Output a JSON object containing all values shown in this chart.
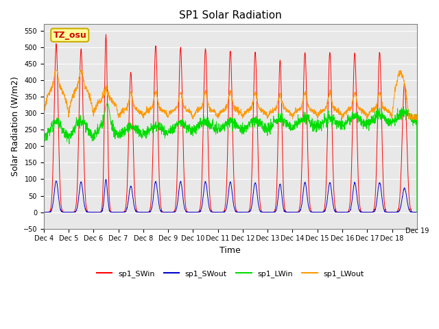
{
  "title": "SP1 Solar Radiation",
  "xlabel": "Time",
  "ylabel": "Solar Radiation (W/m2)",
  "ylim": [
    -50,
    570
  ],
  "yticks": [
    -50,
    0,
    50,
    100,
    150,
    200,
    250,
    300,
    350,
    400,
    450,
    500,
    550
  ],
  "xticklabels": [
    "Dec 4",
    "Dec 5",
    "Dec 6",
    "Dec 7",
    "Dec 8",
    "Dec 9",
    "Dec 10",
    "Dec 11",
    "Dec 12",
    "Dec 13",
    "Dec 14",
    "Dec 15",
    "Dec 16",
    "Dec 17",
    "Dec 18",
    "Dec 19"
  ],
  "colors": {
    "SWin": "#ff0000",
    "SWout": "#0000cc",
    "LWin": "#00dd00",
    "LWout": "#ff9900"
  },
  "legend_labels": [
    "sp1_SWin",
    "sp1_SWout",
    "sp1_LWin",
    "sp1_LWout"
  ],
  "annotation_text": "TZ_osu",
  "annotation_color": "#cc0000",
  "annotation_bg": "#ffff99",
  "annotation_border": "#ccaa00",
  "background_color": "#e8e8e8",
  "n_days": 15,
  "samples_per_day": 144
}
